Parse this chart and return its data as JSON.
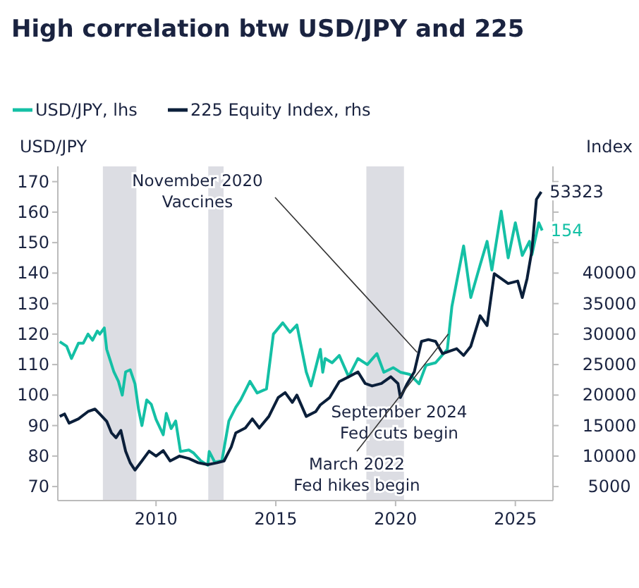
{
  "chart_data": {
    "type": "line",
    "title": "High correlation btw USD/JPY and 225",
    "ylabel": "USD/JPY",
    "y2label": "Index",
    "xlim": [
      2005.9,
      2026.57
    ],
    "xticks": [
      2010,
      2015,
      2020,
      2025
    ],
    "ylim": [
      65.4,
      175
    ],
    "yticks": [
      70,
      80,
      90,
      100,
      110,
      120,
      130,
      140,
      150,
      160,
      170
    ],
    "y2lim": [
      2700,
      57500
    ],
    "y2ticks": [
      5000,
      10000,
      15000,
      20000,
      25000,
      30000,
      35000,
      40000,
      {
        "value": 45000,
        "label": null
      },
      {
        "value": 50000,
        "label": null
      },
      {
        "value": 55000,
        "label": null
      }
    ],
    "legend": "top left",
    "grid": false,
    "line_style": "solid",
    "marker": "none",
    "bands": [
      {
        "axis": "x",
        "from": 2007.78,
        "to": 2009.18,
        "color": "#dcdde3"
      },
      {
        "axis": "x",
        "from": 2012.18,
        "to": 2012.82,
        "color": "#dcdde3"
      },
      {
        "axis": "x",
        "from": 2018.78,
        "to": 2020.35,
        "color": "#dcdde3"
      }
    ],
    "annotations": [
      {
        "text": "November 2020\nVaccines",
        "x": 2020.9,
        "y": 114
      },
      "September 2024\nFed cuts begin",
      {
        "text": "March 2022\nFed hikes begin",
        "x": 2022.2,
        "y": 120
      }
    ],
    "series": [
      {
        "name": "USD/JPY, lhs",
        "color": "#14c0a5",
        "axis": "y",
        "x": [
          2005.98,
          2006.27,
          2006.47,
          2006.76,
          2006.96,
          2007.16,
          2007.35,
          2007.55,
          2007.65,
          2007.84,
          2007.94,
          2008.24,
          2008.43,
          2008.59,
          2008.73,
          2008.92,
          2009.12,
          2009.27,
          2009.41,
          2009.61,
          2009.8,
          2010,
          2010.3,
          2010.43,
          2010.63,
          2010.82,
          2011.02,
          2011.37,
          2011.57,
          2011.86,
          2012.16,
          2012.22,
          2012.45,
          2012.75,
          2013.04,
          2013.33,
          2013.53,
          2013.92,
          2014.22,
          2014.61,
          2014.9,
          2015.29,
          2015.59,
          2015.88,
          2016.27,
          2016.47,
          2016.86,
          2016.96,
          2017.06,
          2017.35,
          2017.65,
          2018.04,
          2018.43,
          2018.82,
          2019.22,
          2019.51,
          2019.9,
          2020.2,
          2020.59,
          2020.98,
          2021.27,
          2021.67,
          2022.16,
          2022.35,
          2022.84,
          2023.14,
          2023.53,
          2023.82,
          2024.02,
          2024.41,
          2024.7,
          2025,
          2025.29,
          2025.59,
          2025.69,
          2025.98,
          2026.12
        ],
        "values": [
          117.5,
          116,
          112,
          117,
          117,
          120,
          118,
          121,
          120,
          122,
          115,
          107.6,
          104.5,
          100,
          107.6,
          108.3,
          103.7,
          95.3,
          90,
          98.4,
          97,
          92,
          87,
          94,
          89,
          91.5,
          81.5,
          82,
          81,
          78.5,
          77,
          81.5,
          78,
          78.5,
          91.5,
          96,
          98.4,
          104.5,
          100.7,
          102,
          120,
          123.7,
          120.6,
          123,
          107.6,
          103,
          115,
          107.5,
          112,
          110.6,
          113,
          106,
          112,
          110,
          113.6,
          107.5,
          109,
          107.5,
          106.8,
          103.7,
          109.8,
          110.6,
          115,
          129,
          148.9,
          132,
          142.7,
          150.4,
          141,
          160.3,
          145,
          156.5,
          145.8,
          150.4,
          146,
          156.5,
          154
        ],
        "value_labels": [
          null,
          null,
          null,
          null,
          null,
          null,
          null,
          null,
          null,
          null,
          null,
          null,
          null,
          null,
          null,
          null,
          null,
          null,
          null,
          null,
          null,
          null,
          null,
          null,
          null,
          null,
          null,
          null,
          null,
          null,
          null,
          null,
          null,
          null,
          null,
          null,
          null,
          null,
          null,
          null,
          null,
          null,
          null,
          null,
          null,
          null,
          null,
          null,
          null,
          null,
          null,
          null,
          null,
          null,
          null,
          null,
          null,
          null,
          null,
          null,
          null,
          null,
          null,
          null,
          null,
          null,
          null,
          null,
          null,
          null,
          null,
          null,
          null,
          null,
          null,
          null,
          "154"
        ]
      },
      {
        "name": "225 Equity Index, rhs",
        "color": "#0b1f3a",
        "axis": "y2",
        "x": [
          2005.98,
          2006.18,
          2006.37,
          2006.76,
          2007.16,
          2007.45,
          2007.65,
          2007.94,
          2008.14,
          2008.33,
          2008.53,
          2008.73,
          2008.92,
          2009.12,
          2009.41,
          2009.71,
          2010,
          2010.3,
          2010.59,
          2010.98,
          2011.37,
          2011.76,
          2012.16,
          2012.55,
          2012.84,
          2013.14,
          2013.33,
          2013.73,
          2014.02,
          2014.31,
          2014.71,
          2015.1,
          2015.39,
          2015.69,
          2015.88,
          2016.27,
          2016.67,
          2016.86,
          2017.25,
          2017.65,
          2018.04,
          2018.43,
          2018.73,
          2019.02,
          2019.41,
          2019.8,
          2020.1,
          2020.2,
          2020.49,
          2020.78,
          2021.08,
          2021.37,
          2021.67,
          2021.96,
          2022.25,
          2022.55,
          2022.84,
          2023.14,
          2023.53,
          2023.82,
          2024.12,
          2024.41,
          2024.7,
          2025.1,
          2025.29,
          2025.49,
          2025.69,
          2025.88,
          2026.08
        ],
        "values": [
          16500,
          16900,
          15400,
          16100,
          17300,
          17700,
          16900,
          15700,
          13800,
          13000,
          14200,
          10800,
          8900,
          7700,
          9200,
          10800,
          10000,
          10900,
          9200,
          10000,
          9600,
          8900,
          8600,
          8900,
          9200,
          11500,
          13800,
          14600,
          16100,
          14600,
          16500,
          19600,
          20400,
          18800,
          20000,
          16500,
          17300,
          18400,
          19600,
          22200,
          23000,
          23800,
          21900,
          21500,
          21900,
          23000,
          21900,
          19600,
          21900,
          23800,
          28800,
          29100,
          28800,
          26800,
          27200,
          27600,
          26500,
          28000,
          33000,
          31400,
          39900,
          39100,
          38300,
          38700,
          36000,
          39100,
          43700,
          52100,
          53323
        ],
        "value_labels": [
          null,
          null,
          null,
          null,
          null,
          null,
          null,
          null,
          null,
          null,
          null,
          null,
          null,
          null,
          null,
          null,
          null,
          null,
          null,
          null,
          null,
          null,
          null,
          null,
          null,
          null,
          null,
          null,
          null,
          null,
          null,
          null,
          null,
          null,
          null,
          null,
          null,
          null,
          null,
          null,
          null,
          null,
          null,
          null,
          null,
          null,
          null,
          null,
          null,
          null,
          null,
          null,
          null,
          null,
          null,
          null,
          null,
          null,
          null,
          null,
          null,
          null,
          null,
          null,
          null,
          null,
          null,
          null,
          "53323"
        ]
      }
    ]
  }
}
